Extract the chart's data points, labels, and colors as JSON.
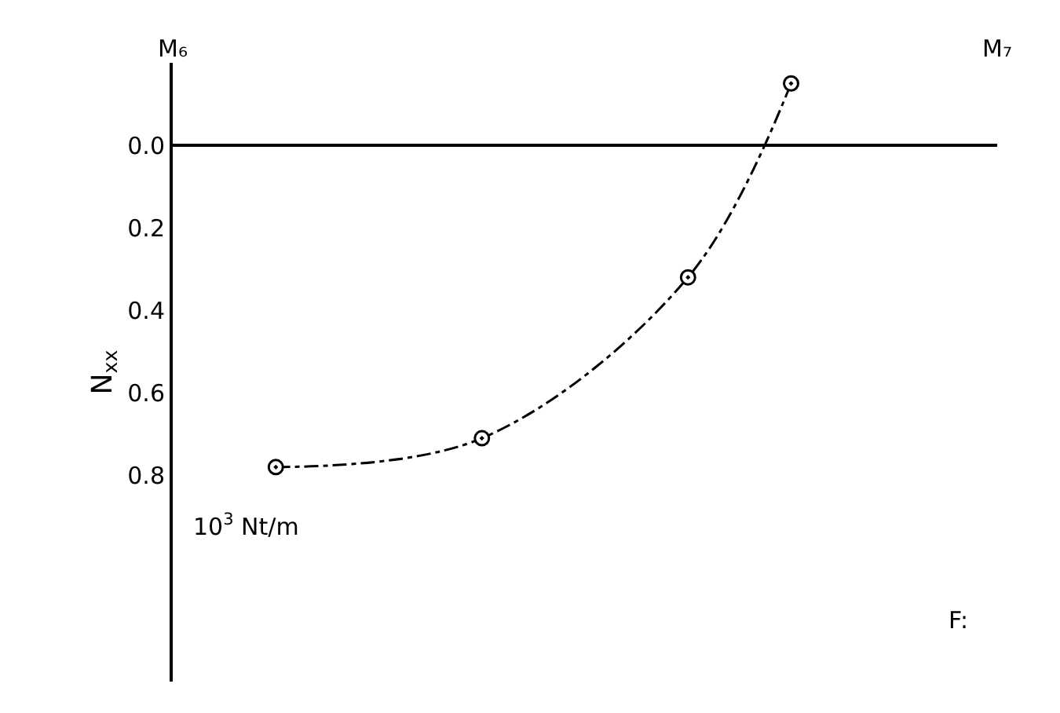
{
  "chart_data": {
    "type": "line",
    "ylabel": "N$_{xx}$",
    "categories": [
      "M₆",
      null,
      null,
      null,
      null,
      null,
      null,
      null,
      "M₇"
    ],
    "values": [
      null,
      0.78,
      null,
      0.71,
      null,
      0.32,
      -0.15,
      null,
      null
    ],
    "color": "#000000",
    "ylim": [
      1.3,
      -0.2
    ],
    "yticks": [
      {
        "value": 0,
        "label": "0.0"
      },
      0.2,
      0.4,
      0.6,
      0.8
    ],
    "annotations": [
      "10$^{3}$ Nt/m",
      "F:"
    ],
    "ref_lines": [
      {
        "axis": "y",
        "value": 0,
        "color": "#000000",
        "line_style": "solid"
      }
    ],
    "marker": "circle",
    "line_style": "dashed",
    "legend": false
  }
}
